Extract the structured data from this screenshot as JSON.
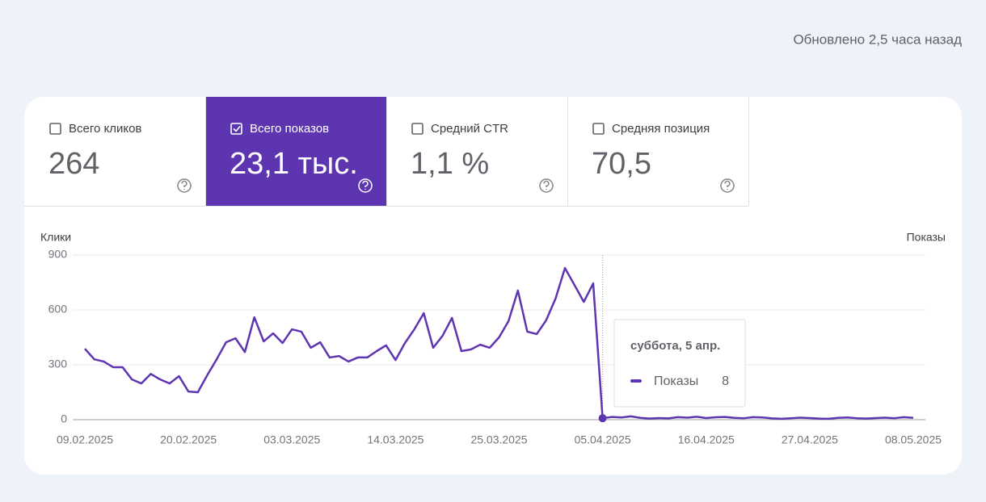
{
  "header": {
    "updated": "Обновлено 2,5 часа назад"
  },
  "metrics": [
    {
      "label": "Всего кликов",
      "value": "264",
      "checked": false
    },
    {
      "label": "Всего показов",
      "value": "23,1 тыс.",
      "checked": true
    },
    {
      "label": "Средний CTR",
      "value": "1,1 %",
      "checked": false
    },
    {
      "label": "Средняя позиция",
      "value": "70,5",
      "checked": false
    }
  ],
  "chart_data": {
    "type": "line",
    "y_label": "Клики",
    "y2_label": "Показы",
    "x": [
      "09.02.2025",
      "10.02.2025",
      "11.02.2025",
      "12.02.2025",
      "13.02.2025",
      "14.02.2025",
      "15.02.2025",
      "16.02.2025",
      "17.02.2025",
      "18.02.2025",
      "19.02.2025",
      "20.02.2025",
      "21.02.2025",
      "22.02.2025",
      "23.02.2025",
      "24.02.2025",
      "25.02.2025",
      "26.02.2025",
      "27.02.2025",
      "28.02.2025",
      "01.03.2025",
      "02.03.2025",
      "03.03.2025",
      "04.03.2025",
      "05.03.2025",
      "06.03.2025",
      "07.03.2025",
      "08.03.2025",
      "09.03.2025",
      "10.03.2025",
      "11.03.2025",
      "12.03.2025",
      "13.03.2025",
      "14.03.2025",
      "15.03.2025",
      "16.03.2025",
      "17.03.2025",
      "18.03.2025",
      "19.03.2025",
      "20.03.2025",
      "21.03.2025",
      "22.03.2025",
      "23.03.2025",
      "24.03.2025",
      "25.03.2025",
      "26.03.2025",
      "27.03.2025",
      "28.03.2025",
      "29.03.2025",
      "30.03.2025",
      "31.03.2025",
      "01.04.2025",
      "02.04.2025",
      "03.04.2025",
      "04.04.2025",
      "05.04.2025",
      "06.04.2025",
      "07.04.2025",
      "08.04.2025",
      "09.04.2025",
      "10.04.2025",
      "11.04.2025",
      "12.04.2025",
      "13.04.2025",
      "14.04.2025",
      "15.04.2025",
      "16.04.2025",
      "17.04.2025",
      "18.04.2025",
      "19.04.2025",
      "20.04.2025",
      "21.04.2025",
      "22.04.2025",
      "23.04.2025",
      "24.04.2025",
      "25.04.2025",
      "26.04.2025",
      "27.04.2025",
      "28.04.2025",
      "29.04.2025",
      "30.04.2025",
      "01.05.2025",
      "02.05.2025",
      "03.05.2025",
      "04.05.2025",
      "05.05.2025",
      "06.05.2025",
      "07.05.2025",
      "08.05.2025"
    ],
    "xticks": [
      0,
      11,
      22,
      33,
      44,
      55,
      66,
      77,
      88
    ],
    "series": [
      {
        "name": "Показы",
        "color": "#5e35b1",
        "values": [
          388,
          330,
          318,
          287,
          287,
          220,
          198,
          250,
          220,
          198,
          238,
          154,
          150,
          243,
          330,
          423,
          445,
          370,
          560,
          428,
          472,
          419,
          494,
          481,
          393,
          423,
          340,
          348,
          318,
          340,
          340,
          375,
          406,
          326,
          419,
          494,
          582,
          393,
          459,
          556,
          375,
          384,
          410,
          393,
          450,
          538,
          706,
          481,
          468,
          543,
          662,
          829,
          737,
          644,
          745,
          8,
          15,
          12,
          18,
          10,
          6,
          9,
          7,
          14,
          11,
          16,
          9,
          13,
          15,
          10,
          8,
          14,
          12,
          7,
          5,
          8,
          11,
          9,
          6,
          5,
          10,
          12,
          8,
          6,
          9,
          11,
          8,
          14,
          10
        ]
      }
    ],
    "ylim": [
      0,
      900
    ],
    "yticks": [
      0,
      300,
      600,
      900
    ],
    "grid": true,
    "tooltip": {
      "title": "суббота, 5 апр."
    }
  }
}
